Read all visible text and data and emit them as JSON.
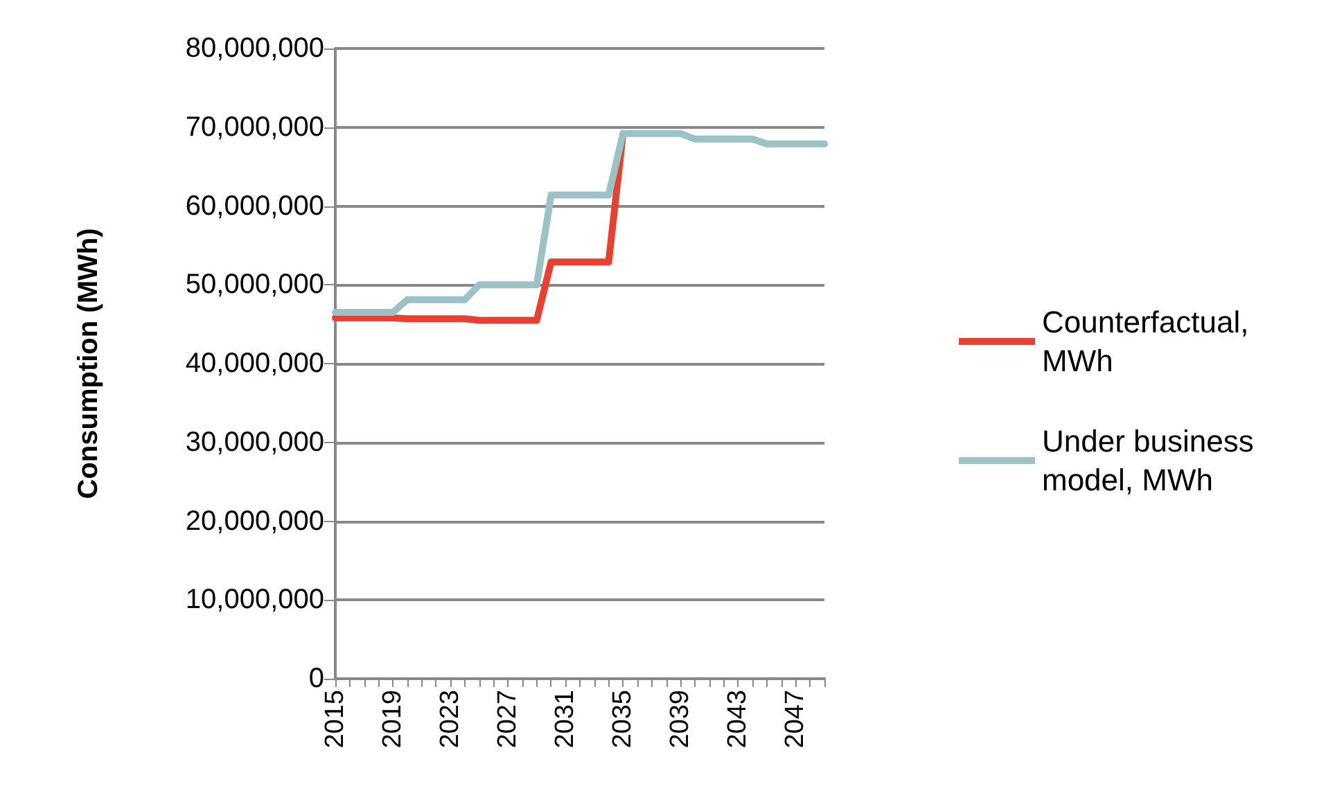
{
  "chart_data": {
    "type": "line",
    "ylabel": "Consumption (MWh)",
    "categories": [
      "2015",
      null,
      null,
      null,
      "2019",
      null,
      null,
      null,
      "2023",
      null,
      null,
      null,
      "2027",
      null,
      null,
      null,
      "2031",
      null,
      null,
      null,
      "2035",
      null,
      null,
      null,
      "2039",
      null,
      null,
      null,
      "2043",
      null,
      null,
      null,
      "2047",
      null,
      null
    ],
    "series": [
      {
        "name": "Counterfactual, MWh",
        "color": "#e84131",
        "values": [
          45800000,
          45800000,
          45800000,
          45800000,
          45800000,
          45700000,
          45700000,
          45700000,
          45700000,
          45700000,
          45500000,
          45500000,
          45500000,
          45500000,
          45500000,
          52900000,
          52900000,
          52900000,
          52900000,
          52900000,
          69200000,
          null,
          null,
          null,
          null,
          null,
          null,
          null,
          null,
          null,
          null,
          null,
          null,
          null,
          null
        ]
      },
      {
        "name": "Under business model, MWh",
        "color": "#9bc2c5",
        "values": [
          46500000,
          46500000,
          46500000,
          46500000,
          46500000,
          48100000,
          48100000,
          48100000,
          48100000,
          48100000,
          50000000,
          50000000,
          50000000,
          50000000,
          50000000,
          61400000,
          61400000,
          61400000,
          61400000,
          61400000,
          69200000,
          69200000,
          69200000,
          69200000,
          69200000,
          68500000,
          68500000,
          68500000,
          68500000,
          68500000,
          67900000,
          67900000,
          67900000,
          67900000,
          67900000
        ]
      }
    ],
    "ylim": [
      0,
      80000000
    ],
    "yticks": [
      0,
      {
        "value": 10000000,
        "label": "10,000,000"
      },
      {
        "value": 20000000,
        "label": "20,000,000"
      },
      {
        "value": 30000000,
        "label": "30,000,000"
      },
      {
        "value": 40000000,
        "label": "40,000,000"
      },
      {
        "value": 50000000,
        "label": "50,000,000"
      },
      {
        "value": 60000000,
        "label": "60,000,000"
      },
      {
        "value": 70000000,
        "label": "70,000,000"
      },
      {
        "value": 80000000,
        "label": "80,000,000"
      }
    ],
    "grid": "y",
    "legend": "right",
    "marker": "none",
    "line_style": "solid"
  }
}
